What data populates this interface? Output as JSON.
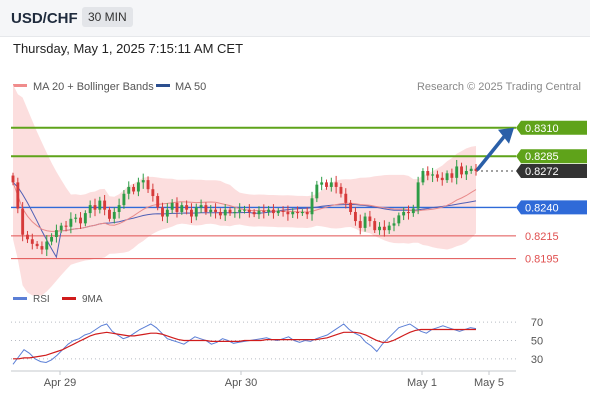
{
  "header": {
    "symbol": "USD/CHF",
    "timeframe": "30 MIN",
    "datetime": "Thursday, May 1, 2025 7:15:11 AM CET"
  },
  "legend": {
    "ma20": "MA 20 + Bollinger Bands",
    "ma50": "MA 50",
    "credit": "Research © 2025 Trading Central",
    "rsi": "RSI",
    "rsi_ma": "9MA"
  },
  "colors": {
    "up": "#2d9c46",
    "down": "#d63a3a",
    "band_fill": "#fcdada",
    "ma20": "#e88a8a",
    "ma50": "#4f5fb5",
    "target": "#5fa31a",
    "pivot": "#2f6ad8",
    "support": "#e05050",
    "arrow": "#2a5fa8",
    "rsi": "#5b7fd6",
    "rsi_ma": "#d01c1c"
  },
  "chart_data": [
    {
      "type": "candlestick",
      "ylim": [
        0.8185,
        0.833
      ],
      "levels": [
        {
          "value": 0.831,
          "label": "0.8310",
          "role": "target"
        },
        {
          "value": 0.8285,
          "label": "0.8285",
          "role": "target"
        },
        {
          "value": 0.8272,
          "label": "0.8272",
          "role": "last"
        },
        {
          "value": 0.824,
          "label": "0.8240",
          "role": "pivot"
        },
        {
          "value": 0.8215,
          "label": "0.8215",
          "role": "support"
        },
        {
          "value": 0.8195,
          "label": "0.8195",
          "role": "support"
        }
      ],
      "x_ticks": [
        "Apr 29",
        "Apr 30",
        "May 1",
        "May 5"
      ],
      "close_path": [
        0.8262,
        0.8239,
        0.8216,
        0.8212,
        0.8208,
        0.8206,
        0.8203,
        0.821,
        0.8214,
        0.822,
        0.8224,
        0.8223,
        0.823,
        0.8231,
        0.8226,
        0.8235,
        0.8242,
        0.8238,
        0.8246,
        0.8238,
        0.823,
        0.8236,
        0.8242,
        0.8252,
        0.8258,
        0.8254,
        0.8262,
        0.8264,
        0.8256,
        0.825,
        0.824,
        0.8232,
        0.8238,
        0.8244,
        0.8236,
        0.8242,
        0.8238,
        0.8232,
        0.824,
        0.8242,
        0.8236,
        0.8238,
        0.8236,
        0.8233,
        0.8238,
        0.8235,
        0.8236,
        0.8238,
        0.8238,
        0.8236,
        0.8234,
        0.8237,
        0.8236,
        0.8238,
        0.8235,
        0.8237,
        0.8236,
        0.8234,
        0.8236,
        0.8235,
        0.8236,
        0.8234,
        0.8248,
        0.826,
        0.8262,
        0.8258,
        0.8262,
        0.8258,
        0.8252,
        0.8244,
        0.8236,
        0.8228,
        0.8222,
        0.8232,
        0.8228,
        0.822,
        0.8223,
        0.822,
        0.8224,
        0.8226,
        0.8233,
        0.8236,
        0.8235,
        0.8239,
        0.8262,
        0.8272,
        0.8268,
        0.8269,
        0.8266,
        0.8264,
        0.827,
        0.8266,
        0.8276,
        0.8269,
        0.8272,
        0.8274,
        0.8272
      ]
    },
    {
      "type": "line",
      "title": "RSI",
      "ylim": [
        20,
        80
      ],
      "y_ticks": [
        70,
        50,
        30
      ],
      "series": [
        {
          "name": "RSI",
          "values": [
            24,
            32,
            40,
            36,
            30,
            27,
            26,
            29,
            34,
            40,
            46,
            50,
            52,
            56,
            58,
            62,
            66,
            68,
            60,
            56,
            52,
            54,
            58,
            62,
            65,
            68,
            64,
            58,
            52,
            50,
            48,
            46,
            50,
            54,
            52,
            50,
            46,
            48,
            52,
            50,
            47,
            48,
            49,
            50,
            51,
            52,
            53,
            51,
            50,
            52,
            54,
            50,
            48,
            50,
            49,
            52,
            54,
            56,
            60,
            64,
            68,
            62,
            58,
            55,
            48,
            44,
            38,
            46,
            52,
            58,
            64,
            66,
            68,
            64,
            60,
            58,
            62,
            64,
            66,
            64,
            62,
            60,
            62,
            64,
            63
          ]
        },
        {
          "name": "9MA",
          "values": [
            30,
            30,
            31,
            31,
            32,
            33,
            34,
            36,
            38,
            40,
            43,
            46,
            49,
            52,
            55,
            57,
            58,
            59,
            58,
            57,
            56,
            55,
            55,
            56,
            57,
            58,
            58,
            57,
            55,
            53,
            51,
            50,
            50,
            50,
            50,
            50,
            49,
            49,
            49,
            49,
            49,
            49,
            50,
            50,
            50,
            50,
            51,
            51,
            51,
            51,
            51,
            51,
            51,
            51,
            51,
            51,
            52,
            53,
            55,
            57,
            59,
            59,
            59,
            58,
            56,
            53,
            50,
            48,
            48,
            50,
            53,
            56,
            59,
            61,
            62,
            62,
            62,
            62,
            62,
            62,
            62,
            62,
            62,
            62,
            62
          ]
        }
      ]
    }
  ]
}
